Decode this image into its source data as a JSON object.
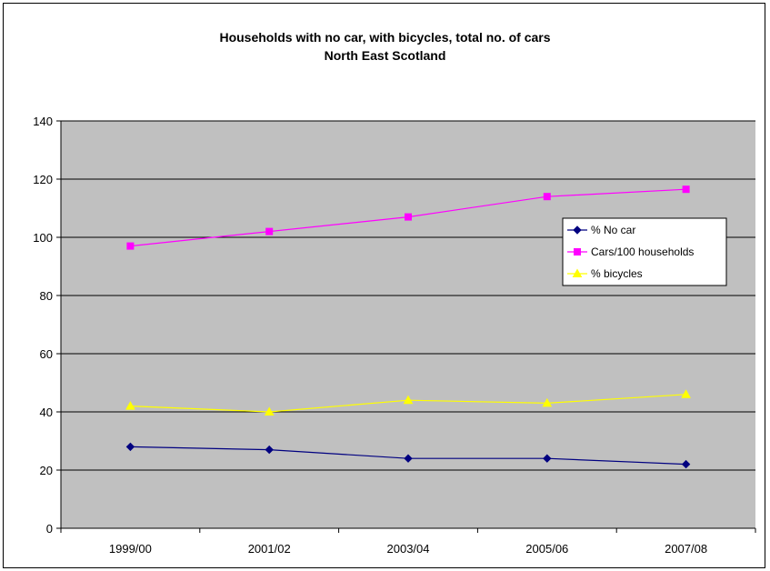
{
  "chart_data": {
    "type": "line",
    "title": "Households with no car, with bicycles, total no. of cars",
    "subtitle": "North East Scotland",
    "xlabel": "",
    "ylabel": "",
    "categories": [
      "1999/00",
      "2001/02",
      "2003/04",
      "2005/06",
      "2007/08"
    ],
    "ylim": [
      0,
      140
    ],
    "yticks": [
      0,
      20,
      40,
      60,
      80,
      100,
      120,
      140
    ],
    "grid": true,
    "plot_background": "#c0c0c0",
    "legend_position": "right",
    "series": [
      {
        "name": "% No car",
        "color": "#000080",
        "marker": "diamond",
        "values": [
          28,
          27,
          24,
          24,
          22
        ]
      },
      {
        "name": "Cars/100 households",
        "color": "#ff00ff",
        "marker": "square",
        "values": [
          97,
          102,
          107,
          114,
          116.5
        ]
      },
      {
        "name": "% bicycles",
        "color": "#ffff00",
        "marker": "triangle",
        "values": [
          42,
          40,
          44,
          43,
          46
        ]
      }
    ]
  }
}
